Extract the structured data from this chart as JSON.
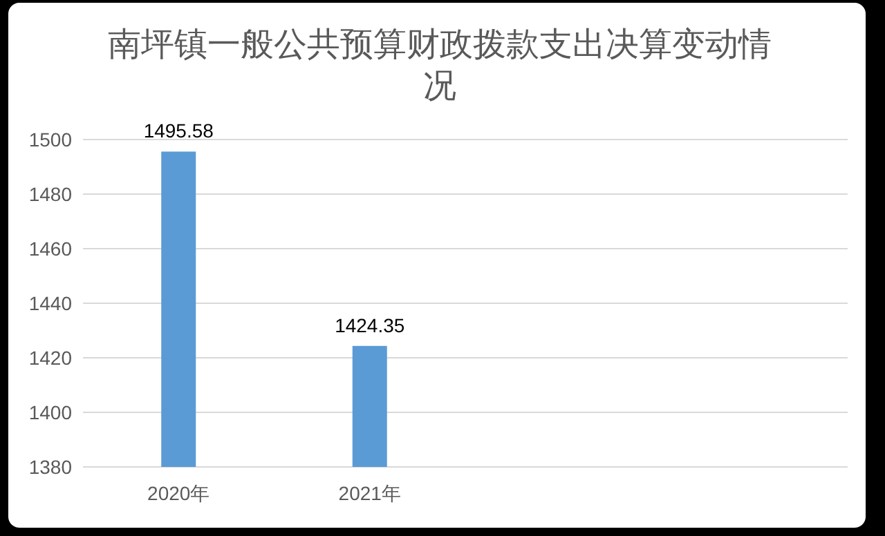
{
  "chart_data": {
    "type": "bar",
    "title": "南坪镇一般公共预算财政拨款支出决算变动情况",
    "categories": [
      "2020年",
      "2021年",
      null,
      null
    ],
    "values": [
      1495.58,
      1424.35,
      null,
      null
    ],
    "color": "#5b9bd5",
    "ylim": [
      1380,
      1500
    ],
    "yticks": [
      1380,
      1400,
      1420,
      1440,
      1460,
      1480,
      1500
    ],
    "grid": "y",
    "data_labels": true
  }
}
